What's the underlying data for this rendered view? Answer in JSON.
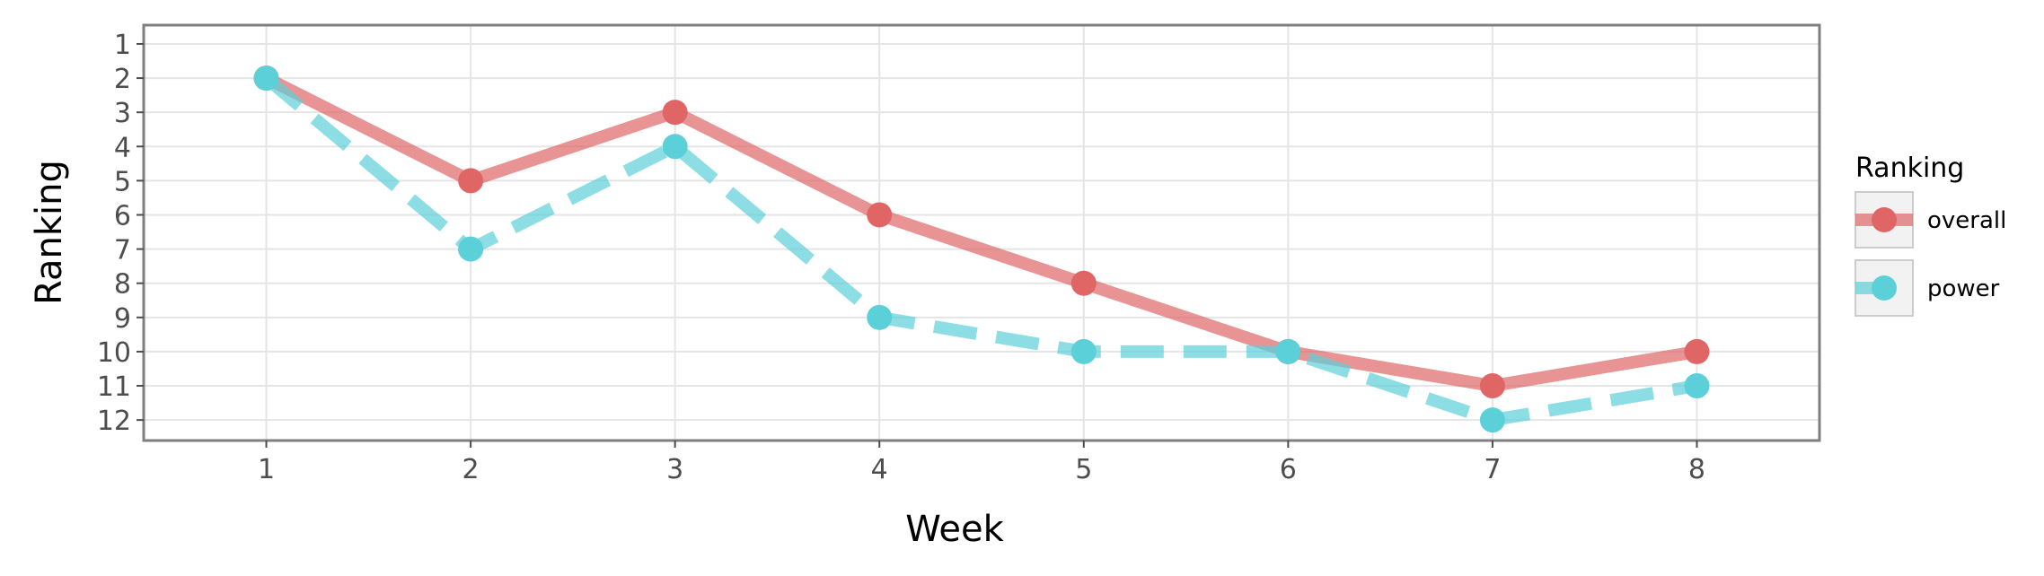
{
  "chart_data": {
    "type": "line",
    "xlabel": "Week",
    "ylabel": "Ranking",
    "x": [
      1,
      2,
      3,
      4,
      5,
      6,
      7,
      8
    ],
    "xlim": [
      0.4,
      8.6
    ],
    "ylim": [
      12.6,
      0.45
    ],
    "y_reversed": true,
    "yticks": [
      1,
      2,
      3,
      4,
      5,
      6,
      7,
      8,
      9,
      10,
      11,
      12
    ],
    "grid": true,
    "legend": {
      "title": "Ranking",
      "placement": "right"
    },
    "series": [
      {
        "name": "overall",
        "values": [
          2,
          5,
          3,
          6,
          8,
          10,
          11,
          10
        ],
        "color": "#e06666",
        "line_style": "solid"
      },
      {
        "name": "power",
        "values": [
          2,
          7,
          4,
          9,
          10,
          10,
          12,
          11
        ],
        "color": "#5bd0d8",
        "line_style": "dashed"
      }
    ]
  }
}
